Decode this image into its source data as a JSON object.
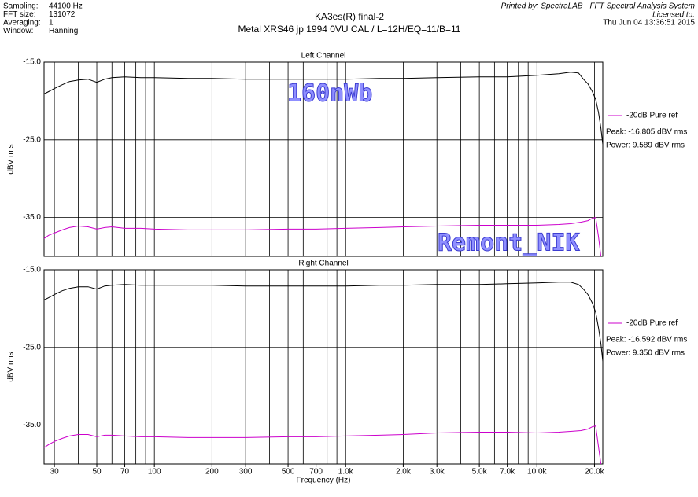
{
  "header": {
    "info": [
      [
        "Sampling:",
        "44100 Hz"
      ],
      [
        "FFT size:",
        "131072"
      ],
      [
        "Averaging:",
        "1"
      ],
      [
        "Window:",
        "Hanning"
      ]
    ],
    "title": "KA3es(R)  final-2",
    "subtitle": "Metal XRS46 jp 1994  0VU CAL / L=12H/EQ=11/B=11",
    "printed_by": "Printed by: SpectraLAB - FFT Spectral Analysis System",
    "licensed": "Licensed to:",
    "date": "Thu Jun 04 13:36:51 2015"
  },
  "watermarks": [
    "160nWb",
    "Remont_NIK"
  ],
  "chart_data": [
    {
      "type": "line",
      "title": "Left Channel",
      "ylabel": "dBV rms",
      "xscale": "log",
      "xlim": [
        26.5,
        22100
      ],
      "ylim": [
        -40,
        -15
      ],
      "yticks": [
        {
          "value": -15,
          "label": "-15.0"
        },
        {
          "value": -25,
          "label": "-25.0"
        },
        {
          "value": -35,
          "label": "-35.0"
        }
      ],
      "xgrid": [
        30,
        40,
        50,
        60,
        70,
        80,
        90,
        100,
        200,
        300,
        400,
        500,
        600,
        700,
        800,
        900,
        1000,
        2000,
        3000,
        4000,
        5000,
        6000,
        7000,
        8000,
        9000,
        10000,
        20000
      ],
      "legend": "right",
      "series": [
        {
          "color": "#000000",
          "x": [
            26.5,
            28,
            30,
            33,
            36,
            40,
            45,
            50,
            55,
            60,
            70,
            85,
            100,
            150,
            200,
            300,
            500,
            700,
            1000,
            1500,
            2000,
            3000,
            5000,
            7000,
            10000,
            13000,
            15000,
            16500,
            17500,
            18500,
            19500,
            20300,
            21000,
            21600,
            22100
          ],
          "values": [
            -19.1,
            -18.8,
            -18.4,
            -17.9,
            -17.5,
            -17.3,
            -17.2,
            -17.6,
            -17.2,
            -17.0,
            -16.9,
            -17.0,
            -17.0,
            -17.1,
            -17.1,
            -17.2,
            -17.2,
            -17.2,
            -17.2,
            -17.1,
            -17.1,
            -17.0,
            -16.9,
            -16.9,
            -16.7,
            -16.5,
            -16.3,
            -16.4,
            -17.2,
            -17.8,
            -18.8,
            -19.8,
            -21.5,
            -23.5,
            -25.6
          ]
        },
        {
          "name": "-20dB Pure ref",
          "color": "#cc00cc",
          "x": [
            26.5,
            28,
            30,
            33,
            36,
            40,
            45,
            50,
            55,
            60,
            70,
            85,
            100,
            150,
            200,
            300,
            500,
            700,
            1000,
            1500,
            2000,
            3000,
            5000,
            7000,
            10000,
            13000,
            15000,
            17000,
            18500,
            19500,
            20300,
            21000,
            21600
          ],
          "values": [
            -37.7,
            -37.3,
            -37.0,
            -36.6,
            -36.3,
            -36.1,
            -36.2,
            -36.5,
            -36.3,
            -36.2,
            -36.4,
            -36.4,
            -36.5,
            -36.6,
            -36.6,
            -36.6,
            -36.5,
            -36.5,
            -36.4,
            -36.3,
            -36.2,
            -36.1,
            -36.0,
            -36.0,
            -36.0,
            -35.9,
            -35.8,
            -35.6,
            -35.4,
            -35.1,
            -35.0,
            -37.5,
            -40.0
          ]
        }
      ],
      "annotations": [
        "Peak: -16.805 dBV rms",
        "Power: 9.589 dBV rms"
      ]
    },
    {
      "type": "line",
      "title": "Right Channel",
      "ylabel": "dBV rms",
      "xlabel": "Frequency (Hz)",
      "xscale": "log",
      "xlim": [
        26.5,
        22100
      ],
      "ylim": [
        -40,
        -15
      ],
      "yticks": [
        {
          "value": -15,
          "label": "-15.0"
        },
        {
          "value": -25,
          "label": "-25.0"
        },
        {
          "value": -35,
          "label": "-35.0"
        }
      ],
      "xticks": [
        30,
        50,
        70,
        100,
        200,
        300,
        500,
        700,
        {
          "value": 1000,
          "label": "1.0k"
        },
        {
          "value": 2000,
          "label": "2.0k"
        },
        {
          "value": 3000,
          "label": "3.0k"
        },
        {
          "value": 5000,
          "label": "5.0k"
        },
        {
          "value": 7000,
          "label": "7.0k"
        },
        {
          "value": 10000,
          "label": "10.0k"
        },
        {
          "value": 20000,
          "label": "20.0k"
        }
      ],
      "xgrid": [
        30,
        40,
        50,
        60,
        70,
        80,
        90,
        100,
        200,
        300,
        400,
        500,
        600,
        700,
        800,
        900,
        1000,
        2000,
        3000,
        4000,
        5000,
        6000,
        7000,
        8000,
        9000,
        10000,
        20000
      ],
      "legend": "right",
      "series": [
        {
          "color": "#000000",
          "x": [
            26.5,
            28,
            30,
            33,
            36,
            40,
            45,
            50,
            55,
            60,
            70,
            85,
            100,
            150,
            200,
            300,
            500,
            700,
            1000,
            1500,
            2000,
            3000,
            5000,
            7000,
            10000,
            13000,
            15000,
            16500,
            17500,
            18500,
            19500,
            20300,
            21000,
            21600,
            22100
          ],
          "values": [
            -18.9,
            -18.6,
            -18.2,
            -17.7,
            -17.4,
            -17.2,
            -17.2,
            -17.5,
            -17.1,
            -17.0,
            -16.9,
            -17.0,
            -17.0,
            -17.0,
            -17.0,
            -17.1,
            -17.1,
            -17.1,
            -17.1,
            -17.0,
            -17.0,
            -16.9,
            -16.9,
            -16.8,
            -16.7,
            -16.6,
            -16.6,
            -16.9,
            -17.5,
            -18.2,
            -19.3,
            -20.5,
            -22.5,
            -24.5,
            -26.8
          ]
        },
        {
          "name": "-20dB Pure ref",
          "color": "#cc00cc",
          "x": [
            26.5,
            28,
            30,
            33,
            36,
            40,
            45,
            50,
            55,
            60,
            70,
            85,
            100,
            150,
            200,
            300,
            500,
            700,
            1000,
            1500,
            2000,
            3000,
            5000,
            7000,
            10000,
            13000,
            15000,
            17000,
            18500,
            19500,
            20300,
            21000,
            21600
          ],
          "values": [
            -37.9,
            -37.5,
            -37.1,
            -36.7,
            -36.4,
            -36.2,
            -36.2,
            -36.5,
            -36.3,
            -36.3,
            -36.4,
            -36.5,
            -36.5,
            -36.6,
            -36.6,
            -36.6,
            -36.5,
            -36.5,
            -36.4,
            -36.3,
            -36.2,
            -36.0,
            -35.9,
            -35.9,
            -36.0,
            -35.9,
            -35.8,
            -35.7,
            -35.5,
            -35.2,
            -35.1,
            -37.8,
            -40.0
          ]
        }
      ],
      "annotations": [
        "Peak: -16.592 dBV rms",
        "Power: 9.350 dBV rms"
      ]
    }
  ]
}
